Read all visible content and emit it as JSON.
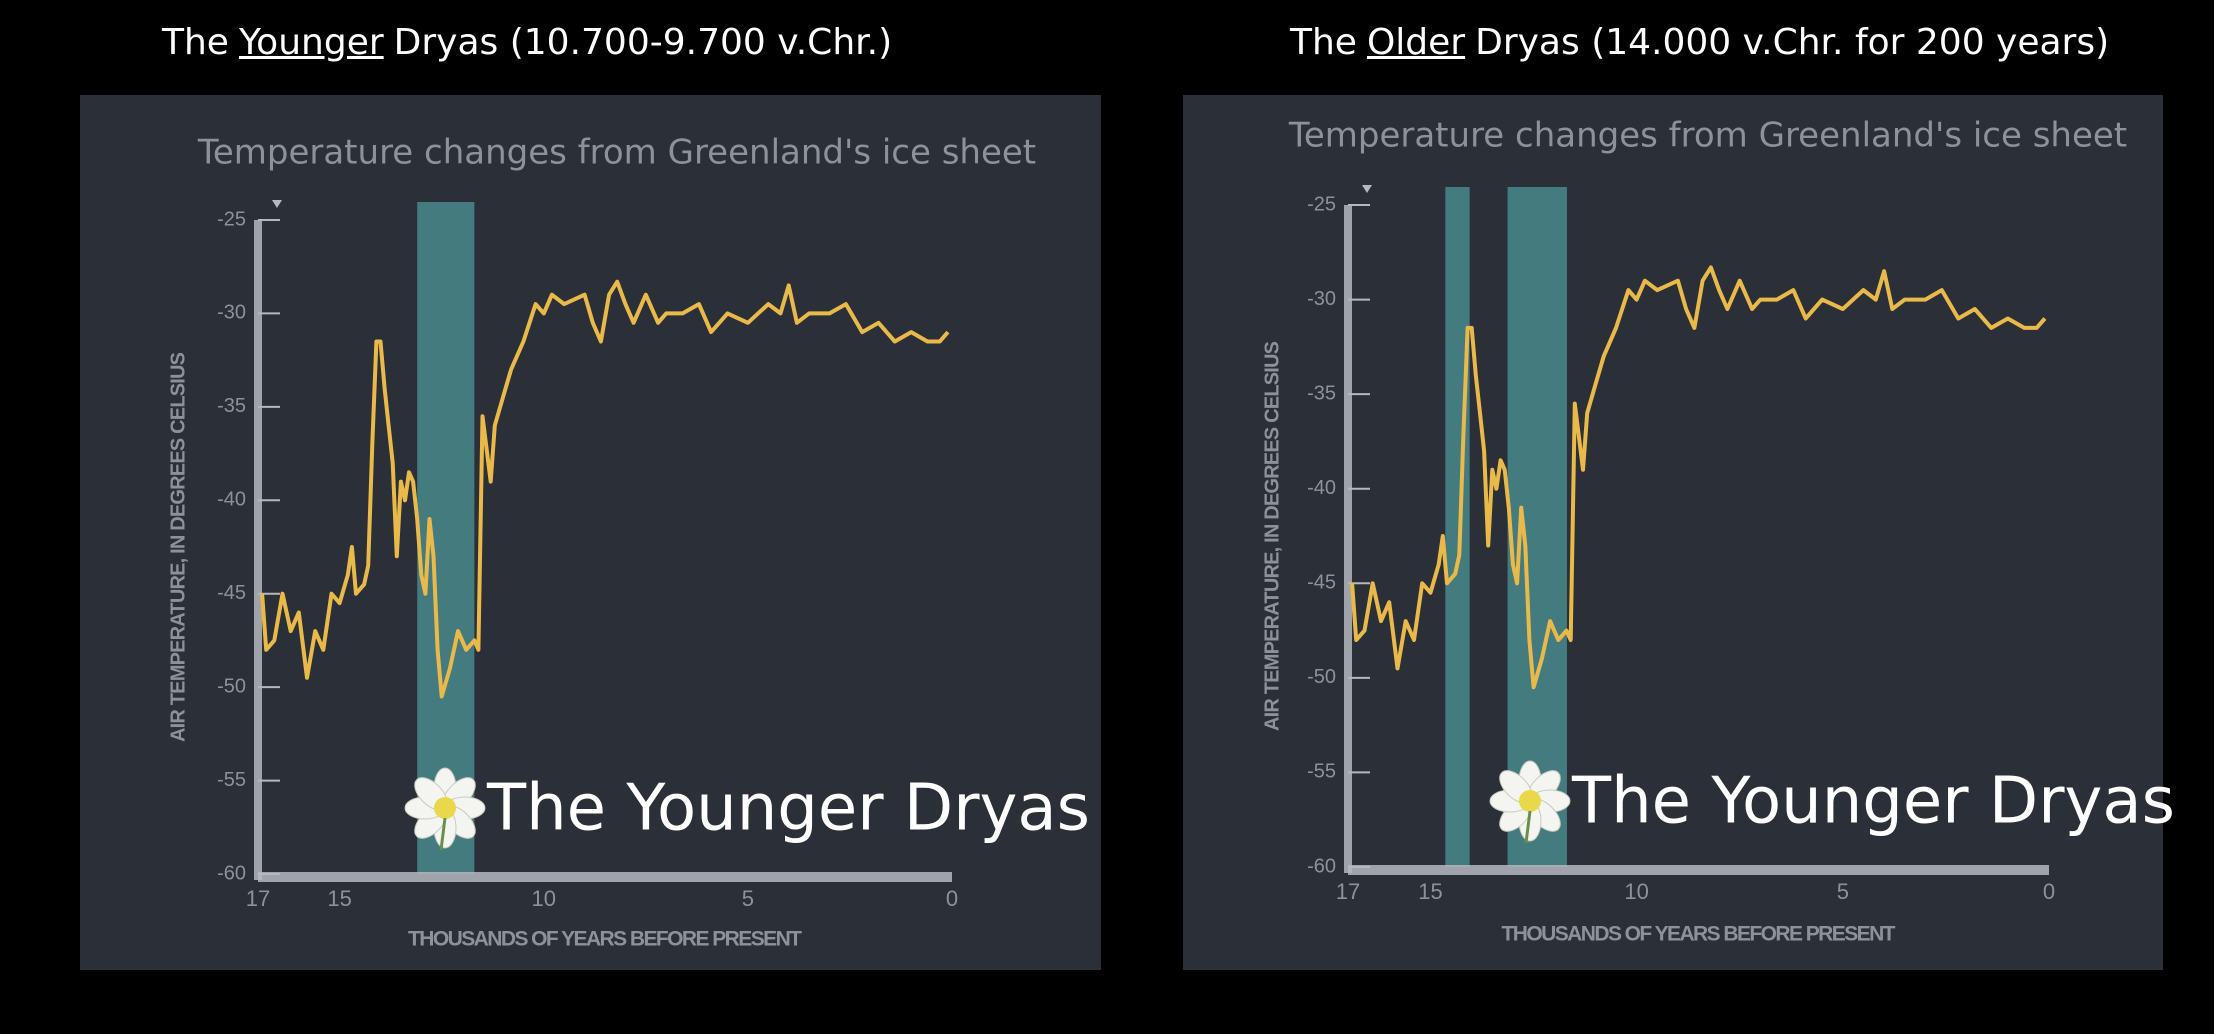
{
  "chart_data": [
    {
      "type": "line",
      "heading": {
        "before": "The",
        "emphasis": "Younger",
        "after": "Dryas (10.700-9.700 v.Chr.)"
      },
      "title": "Temperature changes from Greenland's ice sheet",
      "xlabel": "THOUSANDS OF YEARS BEFORE PRESENT",
      "ylabel": "AIR TEMPERATURE, IN DEGREES CELSIUS",
      "watermark": "The Younger Dryas",
      "x": [
        16.9,
        16.8,
        16.6,
        16.4,
        16.2,
        16.0,
        15.8,
        15.6,
        15.4,
        15.2,
        15.0,
        14.8,
        14.7,
        14.6,
        14.4,
        14.3,
        14.2,
        14.1,
        14.0,
        13.9,
        13.8,
        13.7,
        13.6,
        13.5,
        13.4,
        13.3,
        13.2,
        13.1,
        13.0,
        12.9,
        12.8,
        12.7,
        12.6,
        12.5,
        12.3,
        12.1,
        11.9,
        11.7,
        11.6,
        11.5,
        11.3,
        11.2,
        11.0,
        10.8,
        10.5,
        10.2,
        10.0,
        9.8,
        9.5,
        9.0,
        8.8,
        8.6,
        8.4,
        8.2,
        8.0,
        7.8,
        7.5,
        7.2,
        7.0,
        6.6,
        6.2,
        5.9,
        5.5,
        5.0,
        4.5,
        4.2,
        4.0,
        3.8,
        3.5,
        3.0,
        2.6,
        2.2,
        1.8,
        1.4,
        1.0,
        0.6,
        0.3,
        0.1
      ],
      "values": [
        -45,
        -48,
        -47.5,
        -45,
        -47,
        -46,
        -49.5,
        -47,
        -48,
        -45,
        -45.5,
        -44,
        -42.5,
        -45,
        -44.5,
        -43.5,
        -37,
        -31.5,
        -31.5,
        -34,
        -36,
        -38,
        -43,
        -39,
        -40,
        -38.5,
        -39,
        -41,
        -44,
        -45,
        -41,
        -43,
        -48,
        -50.5,
        -49,
        -47,
        -48,
        -47.5,
        -48,
        -35.5,
        -39,
        -36,
        -34.5,
        -33,
        -31.5,
        -29.5,
        -30,
        -29,
        -29.5,
        -29,
        -30.5,
        -31.5,
        -29,
        -28.3,
        -29.5,
        -30.5,
        -29,
        -30.5,
        -30,
        -30,
        -29.5,
        -31,
        -30,
        -30.5,
        -29.5,
        -30,
        -28.5,
        -30.5,
        -30,
        -30,
        -29.5,
        -31,
        -30.5,
        -31.5,
        -31,
        -31.5,
        -31.5,
        -31
      ],
      "color": "#e9b94a",
      "band_color": "#4c9598",
      "bands": [
        [
          13.1,
          11.7
        ]
      ],
      "xlim": [
        17,
        0
      ],
      "xticks": [
        17,
        15,
        10,
        5,
        0
      ],
      "ylim": [
        -60,
        -25
      ],
      "yticks": [
        -25,
        -30,
        -35,
        -40,
        -45,
        -50,
        -55,
        -60
      ]
    },
    {
      "type": "line",
      "heading": {
        "before": "The",
        "emphasis": "Older",
        "after": "Dryas (14.000 v.Chr. for 200 years)"
      },
      "title": "Temperature changes from Greenland's ice sheet",
      "xlabel": "THOUSANDS OF YEARS BEFORE PRESENT",
      "ylabel": "AIR TEMPERATURE, IN DEGREES CELSIUS",
      "watermark": "The Younger Dryas",
      "x": [
        16.9,
        16.8,
        16.6,
        16.4,
        16.2,
        16.0,
        15.8,
        15.6,
        15.4,
        15.2,
        15.0,
        14.8,
        14.7,
        14.6,
        14.4,
        14.3,
        14.2,
        14.1,
        14.0,
        13.9,
        13.8,
        13.7,
        13.6,
        13.5,
        13.4,
        13.3,
        13.2,
        13.1,
        13.0,
        12.9,
        12.8,
        12.7,
        12.6,
        12.5,
        12.3,
        12.1,
        11.9,
        11.7,
        11.6,
        11.5,
        11.3,
        11.2,
        11.0,
        10.8,
        10.5,
        10.2,
        10.0,
        9.8,
        9.5,
        9.0,
        8.8,
        8.6,
        8.4,
        8.2,
        8.0,
        7.8,
        7.5,
        7.2,
        7.0,
        6.6,
        6.2,
        5.9,
        5.5,
        5.0,
        4.5,
        4.2,
        4.0,
        3.8,
        3.5,
        3.0,
        2.6,
        2.2,
        1.8,
        1.4,
        1.0,
        0.6,
        0.3,
        0.1
      ],
      "values": [
        -45,
        -48,
        -47.5,
        -45,
        -47,
        -46,
        -49.5,
        -47,
        -48,
        -45,
        -45.5,
        -44,
        -42.5,
        -45,
        -44.5,
        -43.5,
        -37,
        -31.5,
        -31.5,
        -34,
        -36,
        -38,
        -43,
        -39,
        -40,
        -38.5,
        -39,
        -41,
        -44,
        -45,
        -41,
        -43,
        -48,
        -50.5,
        -49,
        -47,
        -48,
        -47.5,
        -48,
        -35.5,
        -39,
        -36,
        -34.5,
        -33,
        -31.5,
        -29.5,
        -30,
        -29,
        -29.5,
        -29,
        -30.5,
        -31.5,
        -29,
        -28.3,
        -29.5,
        -30.5,
        -29,
        -30.5,
        -30,
        -30,
        -29.5,
        -31,
        -30,
        -30.5,
        -29.5,
        -30,
        -28.5,
        -30.5,
        -30,
        -30,
        -29.5,
        -31,
        -30.5,
        -31.5,
        -31,
        -31.5,
        -31.5,
        -31
      ],
      "color": "#e9b94a",
      "band_color": "#4c9598",
      "bands": [
        [
          14.64,
          14.05
        ],
        [
          13.13,
          11.69
        ]
      ],
      "xlim": [
        17,
        0
      ],
      "xticks": [
        17,
        15,
        10,
        5,
        0
      ],
      "ylim": [
        -60,
        -25
      ],
      "yticks": [
        -25,
        -30,
        -35,
        -40,
        -45,
        -50,
        -55,
        -60
      ]
    }
  ]
}
